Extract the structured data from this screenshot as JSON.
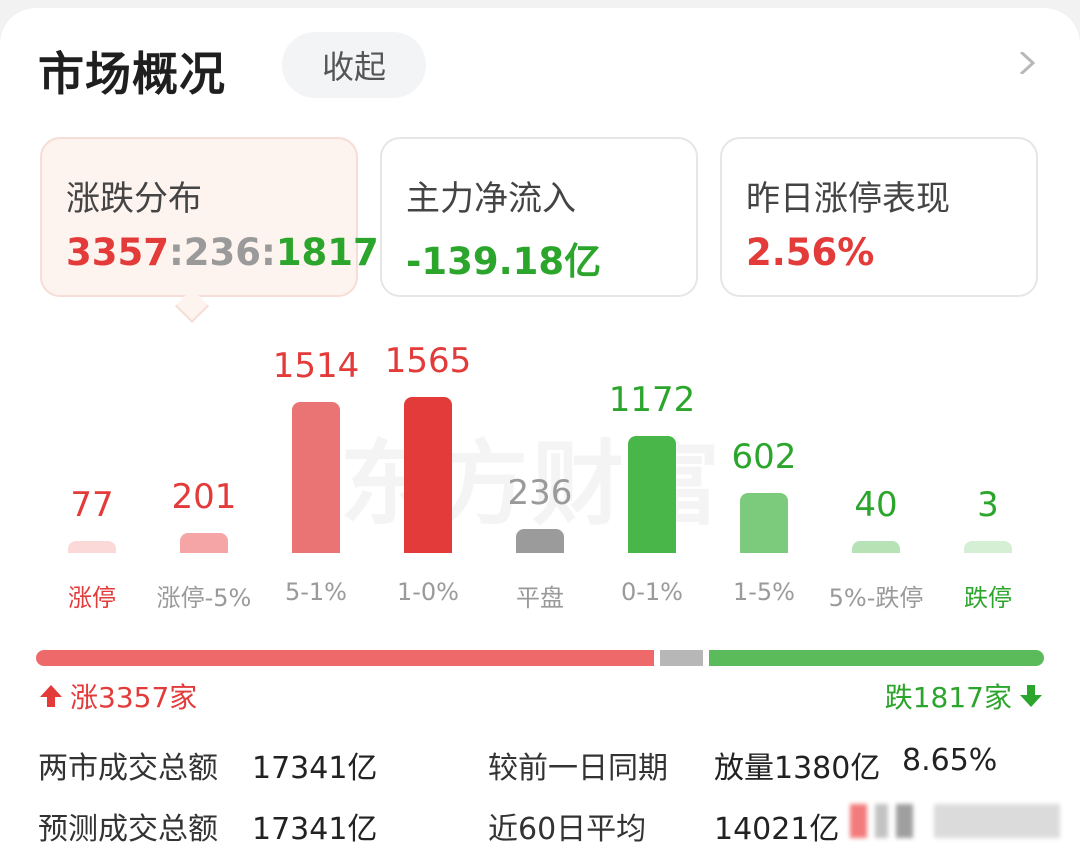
{
  "header": {
    "title": "市场概况",
    "collapse_label": "收起"
  },
  "tabs": [
    {
      "label": "涨跌分布",
      "up": "3357",
      "flat": "236",
      "down": "1817"
    },
    {
      "label": "主力净流入",
      "value": "-139.18亿"
    },
    {
      "label": "昨日涨停表现",
      "value": "2.56%"
    }
  ],
  "watermark": "东方财富",
  "chart_data": {
    "type": "bar",
    "categories": [
      "涨停",
      "涨停-5%",
      "5-1%",
      "1-0%",
      "平盘",
      "0-1%",
      "1-5%",
      "5%-跌停",
      "跌停"
    ],
    "values": [
      77,
      201,
      1514,
      1565,
      236,
      1172,
      602,
      40,
      3
    ],
    "colors": [
      "#fbd9d9",
      "#f5a5a5",
      "#ea7373",
      "#e33a3a",
      "#9b9b9b",
      "#49b649",
      "#7cca7c",
      "#b6e2b6",
      "#d4efd4"
    ],
    "value_colors": [
      "#e33a3a",
      "#e33a3a",
      "#e33a3a",
      "#e33a3a",
      "#9a9a9a",
      "#2ca52c",
      "#2ca52c",
      "#2ca52c",
      "#2ca52c"
    ],
    "category_colors": [
      "#e33a3a",
      "#9a9a9a",
      "#9a9a9a",
      "#9a9a9a",
      "#9a9a9a",
      "#9a9a9a",
      "#9a9a9a",
      "#9a9a9a",
      "#2ca52c"
    ],
    "ylim": [
      0,
      1565
    ]
  },
  "ratio": {
    "up": 3357,
    "flat": 236,
    "down": 1817
  },
  "summary": {
    "up_label": "涨3357家",
    "down_label": "跌1817家"
  },
  "stats": {
    "turnover_label": "两市成交总额",
    "turnover_value": "17341亿",
    "compare_label": "较前一日同期",
    "compare_value": "放量1380亿",
    "compare_pct": "8.65%",
    "forecast_label": "预测成交总额",
    "forecast_value": "17341亿",
    "avg_label": "近60日平均",
    "avg_value": "14021亿"
  },
  "icons": {
    "more": "chevron-right-icon",
    "up": "arrow-up-icon",
    "down": "arrow-down-icon"
  }
}
